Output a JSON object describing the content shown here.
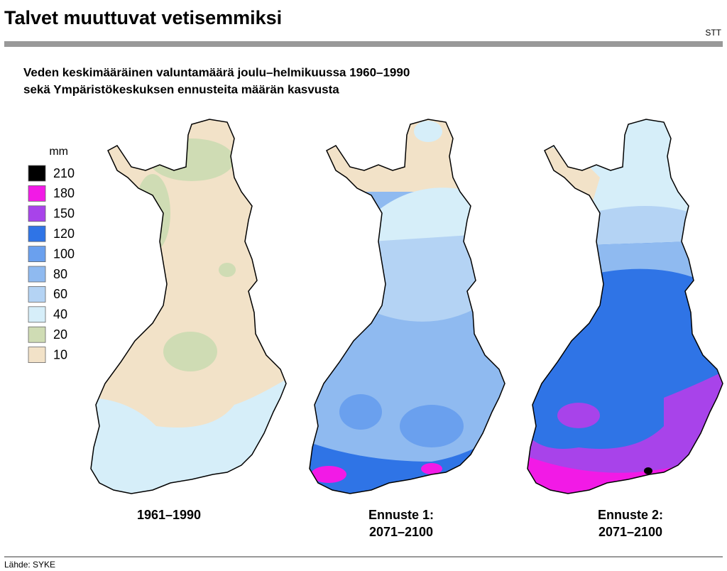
{
  "header": {
    "title": "Talvet muuttuvat vetisemmiksi",
    "agency": "STT"
  },
  "subtitle": [
    "Veden keskimääräinen valuntamäärä joulu–helmikuussa 1960–1990",
    "sekä Ympäristökeskuksen ennusteita määrän kasvusta"
  ],
  "legend": {
    "unit": "mm",
    "items": [
      {
        "label": 210,
        "color": "#000000"
      },
      {
        "label": 180,
        "color": "#f21ae6"
      },
      {
        "label": 150,
        "color": "#a843ea"
      },
      {
        "label": 120,
        "color": "#2f74e6"
      },
      {
        "label": 100,
        "color": "#6aa0ee"
      },
      {
        "label": 80,
        "color": "#8fbaf0"
      },
      {
        "label": 60,
        "color": "#b4d3f4"
      },
      {
        "label": 40,
        "color": "#d6eef9"
      },
      {
        "label": 20,
        "color": "#cfdcb4"
      },
      {
        "label": 10,
        "color": "#f2e2c8"
      }
    ]
  },
  "maps": [
    {
      "caption": [
        "1961–1990"
      ]
    },
    {
      "caption": [
        "Ennuste 1:",
        "2071–2100"
      ]
    },
    {
      "caption": [
        "Ennuste 2:",
        "2071–2100"
      ]
    }
  ],
  "source": "Lähde: SYKE"
}
